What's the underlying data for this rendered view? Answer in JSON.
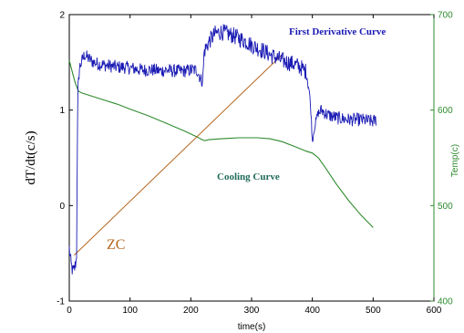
{
  "chart_data": {
    "type": "line",
    "xlabel": "time(s)",
    "ylabel": "dT/dt(c/s)",
    "y2label": "Temp(c)",
    "xlim": [
      0,
      600
    ],
    "ylim": [
      -1,
      2
    ],
    "y2lim": [
      400,
      700
    ],
    "x_ticks": [
      "0",
      "100",
      "200",
      "300",
      "400",
      "500",
      "600"
    ],
    "y_ticks": [
      "-1",
      "0",
      "1",
      "2"
    ],
    "y2_ticks": [
      "400",
      "500",
      "600",
      "700"
    ],
    "colors": {
      "derivative": "#1a1ab4",
      "cooling": "#2e8b2e",
      "zc": "#b5651d",
      "right_axis": "#2e8b2e"
    },
    "series": [
      {
        "name": "First Derivative Curve",
        "axis": "left",
        "x": [
          0,
          3,
          6,
          9,
          12,
          14,
          17,
          20,
          25,
          30,
          40,
          50,
          60,
          70,
          80,
          90,
          100,
          110,
          120,
          130,
          140,
          150,
          160,
          170,
          180,
          190,
          200,
          210,
          218,
          220,
          222,
          225,
          230,
          240,
          250,
          260,
          270,
          280,
          290,
          300,
          310,
          320,
          330,
          340,
          350,
          360,
          370,
          380,
          390,
          395,
          398,
          400,
          403,
          408,
          415,
          425,
          440,
          460,
          480,
          500,
          505
        ],
        "y": [
          -0.45,
          -0.62,
          -0.7,
          -0.65,
          -0.55,
          1.25,
          1.45,
          1.5,
          1.58,
          1.55,
          1.5,
          1.48,
          1.47,
          1.46,
          1.45,
          1.45,
          1.44,
          1.43,
          1.42,
          1.42,
          1.42,
          1.41,
          1.42,
          1.41,
          1.41,
          1.41,
          1.42,
          1.42,
          1.3,
          1.35,
          1.62,
          1.65,
          1.72,
          1.8,
          1.82,
          1.8,
          1.78,
          1.75,
          1.72,
          1.68,
          1.65,
          1.62,
          1.58,
          1.55,
          1.52,
          1.5,
          1.48,
          1.45,
          1.4,
          1.2,
          0.95,
          0.67,
          0.8,
          0.95,
          1.0,
          0.95,
          0.92,
          0.9,
          0.9,
          0.88,
          0.9
        ]
      },
      {
        "name": "Cooling Curve",
        "axis": "right",
        "x": [
          0,
          5,
          10,
          15,
          20,
          30,
          50,
          80,
          100,
          130,
          160,
          190,
          210,
          222,
          230,
          250,
          280,
          310,
          330,
          350,
          370,
          390,
          400,
          410,
          420,
          440,
          460,
          480,
          500
        ],
        "y": [
          652,
          640,
          628,
          620,
          618,
          616,
          612,
          606,
          601,
          594,
          586,
          578,
          572,
          568,
          569,
          570,
          571,
          571,
          570,
          567,
          562,
          557,
          555,
          550,
          541,
          522,
          505,
          490,
          477
        ]
      },
      {
        "name": "ZC",
        "axis": "left",
        "x": [
          8,
          350
        ],
        "y": [
          -0.52,
          1.58
        ]
      }
    ],
    "annotations": [
      {
        "text": "First Derivative Curve",
        "target": "First Derivative Curve"
      },
      {
        "text": "Cooling Curve",
        "target": "Cooling Curve"
      },
      {
        "text": "ZC",
        "target": "ZC"
      }
    ]
  }
}
